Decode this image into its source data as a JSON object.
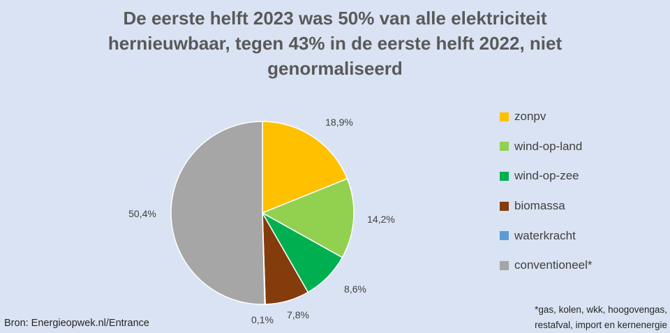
{
  "title_lines": [
    "De eerste helft 2023 was 50% van alle elektriciteit",
    "hernieuwbaar, tegen 43% in de eerste helft 2022, niet",
    "genormaliseerd"
  ],
  "chart_data": {
    "type": "pie",
    "title": "De eerste helft 2023 was 50% van alle elektriciteit hernieuwbaar, tegen 43% in de eerste helft 2022, niet genormaliseerd",
    "slices": [
      {
        "name": "zonpv",
        "value": 18.9,
        "label": "18,9%",
        "color": "#ffc000"
      },
      {
        "name": "wind-op-land",
        "value": 14.2,
        "label": "14,2%",
        "color": "#92d050"
      },
      {
        "name": "wind-op-zee",
        "value": 8.6,
        "label": "8,6%",
        "color": "#00b050"
      },
      {
        "name": "biomassa",
        "value": 7.8,
        "label": "7,8%",
        "color": "#843c0c"
      },
      {
        "name": "waterkracht",
        "value": 0.1,
        "label": "0,1%",
        "color": "#5b9bd5"
      },
      {
        "name": "conventioneel*",
        "value": 50.4,
        "label": "50,4%",
        "color": "#a6a6a6"
      }
    ],
    "legend_position": "right"
  },
  "legend": [
    {
      "label": "zonpv",
      "color": "#ffc000"
    },
    {
      "label": "wind-op-land",
      "color": "#92d050"
    },
    {
      "label": "wind-op-zee",
      "color": "#00b050"
    },
    {
      "label": "biomassa",
      "color": "#843c0c"
    },
    {
      "label": "waterkracht",
      "color": "#5b9bd5"
    },
    {
      "label": "conventioneel*",
      "color": "#a6a6a6"
    }
  ],
  "source": "Bron: Energieopwek.nl/Entrance",
  "footnote_lines": [
    "*gas, kolen, wkk, hoogovengas,",
    "restafval, import en kernenergie"
  ]
}
